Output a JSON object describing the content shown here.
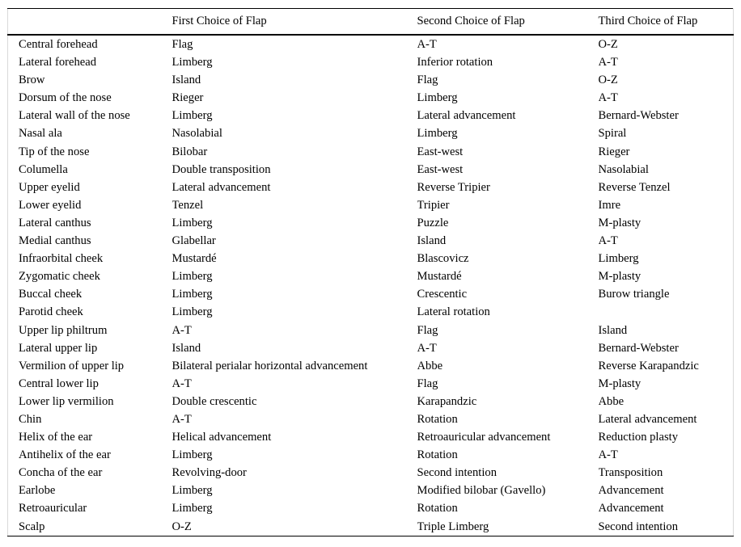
{
  "table": {
    "headers": [
      "",
      "First Choice of Flap",
      "Second Choice of Flap",
      "Third Choice of Flap"
    ],
    "rows": [
      [
        "Central forehead",
        "Flag",
        "A-T",
        "O-Z"
      ],
      [
        "Lateral forehead",
        "Limberg",
        "Inferior rotation",
        "A-T"
      ],
      [
        "Brow",
        "Island",
        "Flag",
        "O-Z"
      ],
      [
        "Dorsum of the nose",
        "Rieger",
        "Limberg",
        "A-T"
      ],
      [
        "Lateral wall of the nose",
        "Limberg",
        "Lateral advancement",
        "Bernard-Webster"
      ],
      [
        "Nasal ala",
        "Nasolabial",
        "Limberg",
        "Spiral"
      ],
      [
        "Tip of the nose",
        "Bilobar",
        "East-west",
        "Rieger"
      ],
      [
        "Columella",
        "Double transposition",
        "East-west",
        "Nasolabial"
      ],
      [
        "Upper eyelid",
        "Lateral advancement",
        "Reverse Tripier",
        "Reverse Tenzel"
      ],
      [
        "Lower eyelid",
        "Tenzel",
        "Tripier",
        "Imre"
      ],
      [
        "Lateral canthus",
        "Limberg",
        "Puzzle",
        "M-plasty"
      ],
      [
        "Medial canthus",
        "Glabellar",
        "Island",
        "A-T"
      ],
      [
        "Infraorbital cheek",
        "Mustardé",
        "Blascovicz",
        "Limberg"
      ],
      [
        "Zygomatic cheek",
        "Limberg",
        "Mustardé",
        "M-plasty"
      ],
      [
        "Buccal cheek",
        "Limberg",
        "Crescentic",
        "Burow triangle"
      ],
      [
        "Parotid cheek",
        "Limberg",
        "Lateral rotation",
        ""
      ],
      [
        "Upper lip philtrum",
        "A-T",
        "Flag",
        "Island"
      ],
      [
        "Lateral upper lip",
        "Island",
        "A-T",
        "Bernard-Webster"
      ],
      [
        "Vermilion of upper lip",
        "Bilateral perialar horizontal advancement",
        "Abbe",
        "Reverse Karapandzic"
      ],
      [
        "Central lower lip",
        "A-T",
        "Flag",
        "M-plasty"
      ],
      [
        "Lower lip vermilion",
        "Double crescentic",
        "Karapandzic",
        "Abbe"
      ],
      [
        "Chin",
        "A-T",
        "Rotation",
        "Lateral advancement"
      ],
      [
        "Helix of the ear",
        "Helical advancement",
        "Retroauricular advancement",
        "Reduction plasty"
      ],
      [
        "Antihelix of the ear",
        "Limberg",
        "Rotation",
        "A-T"
      ],
      [
        "Concha of the ear",
        "Revolving-door",
        "Second intention",
        "Transposition"
      ],
      [
        "Earlobe",
        "Limberg",
        "Modified bilobar (Gavello)",
        "Advancement"
      ],
      [
        "Retroauricular",
        "Limberg",
        "Rotation",
        "Advancement"
      ],
      [
        "Scalp",
        "O-Z",
        "Triple Limberg",
        "Second intention"
      ]
    ]
  }
}
